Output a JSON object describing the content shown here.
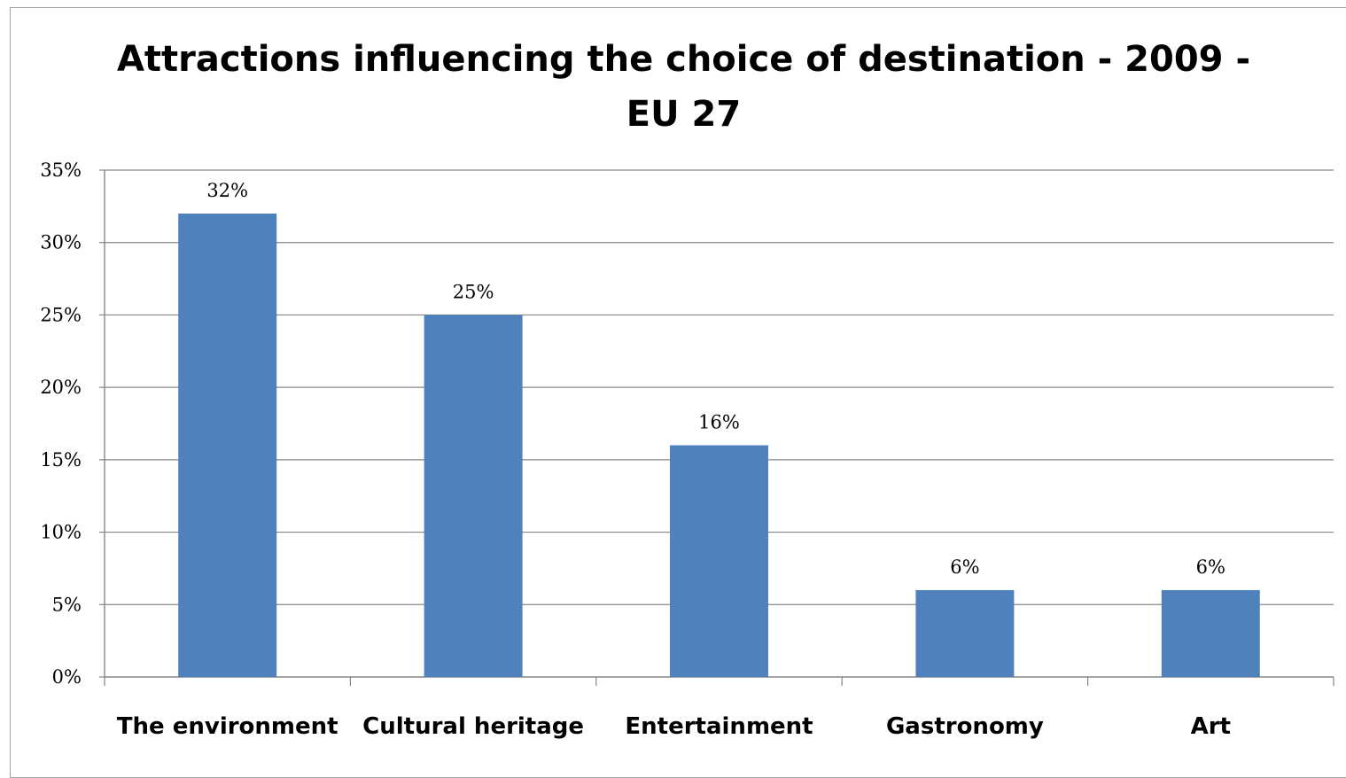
{
  "chart_data": {
    "type": "bar",
    "title": "Attractions influencing the choice of destination - 2009 -\nEU 27",
    "categories": [
      "The environment",
      "Cultural heritage",
      "Entertainment",
      "Gastronomy",
      "Art"
    ],
    "values": [
      32,
      25,
      16,
      6,
      6
    ],
    "data_labels": [
      "32%",
      "25%",
      "16%",
      "6%",
      "6%"
    ],
    "ylim": [
      0,
      35
    ],
    "yticks": [
      0,
      5,
      10,
      15,
      20,
      25,
      30,
      35
    ],
    "ytick_labels": [
      "0%",
      "5%",
      "10%",
      "15%",
      "20%",
      "25%",
      "30%",
      "35%"
    ],
    "xlabel": "",
    "ylabel": "",
    "grid": true,
    "legend": false,
    "bar_color": "#4f81bd",
    "grid_color": "#868686"
  }
}
